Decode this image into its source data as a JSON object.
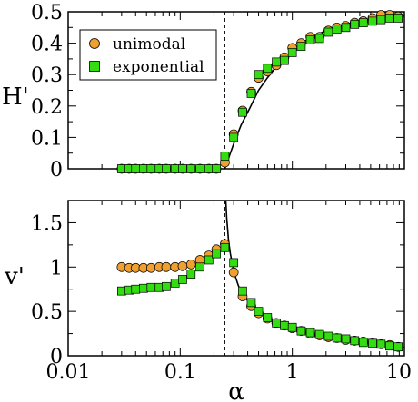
{
  "chart_data": [
    {
      "type": "scatter",
      "ylabel": "H'",
      "xlabel": "",
      "xscale": "log",
      "xlim": [
        0.01,
        10
      ],
      "ylim": [
        0,
        0.5
      ],
      "yticks": [
        0,
        0.1,
        0.2,
        0.3,
        0.4,
        0.5
      ],
      "ytick_labels": [
        "0",
        "0.1",
        "0.2",
        "0.3",
        "0.4",
        "0.5"
      ],
      "xtick_labels": [],
      "legend": "top-left",
      "vline_x": 0.25,
      "series": [
        {
          "name": "unimodal",
          "marker": "circle",
          "color": "#f0a030",
          "x": [
            0.03,
            0.035,
            0.04,
            0.047,
            0.055,
            0.065,
            0.075,
            0.09,
            0.105,
            0.125,
            0.15,
            0.18,
            0.21,
            0.25,
            0.3,
            0.36,
            0.43,
            0.5,
            0.6,
            0.72,
            0.85,
            1.0,
            1.2,
            1.45,
            1.75,
            2.1,
            2.5,
            3.0,
            3.6,
            4.3,
            5.2,
            6.2,
            7.4,
            8.8
          ],
          "y": [
            0,
            0,
            0,
            0,
            0,
            0,
            0,
            0,
            0,
            0,
            0,
            0,
            0,
            0.02,
            0.11,
            0.185,
            0.245,
            0.29,
            0.31,
            0.33,
            0.355,
            0.385,
            0.4,
            0.42,
            0.42,
            0.44,
            0.45,
            0.455,
            0.465,
            0.47,
            0.48,
            0.49,
            0.49,
            0.485
          ]
        },
        {
          "name": "exponential",
          "marker": "square",
          "color": "#33dd11",
          "x": [
            0.03,
            0.035,
            0.04,
            0.047,
            0.055,
            0.065,
            0.075,
            0.09,
            0.105,
            0.125,
            0.15,
            0.18,
            0.21,
            0.25,
            0.3,
            0.36,
            0.43,
            0.5,
            0.6,
            0.72,
            0.85,
            1.0,
            1.2,
            1.45,
            1.75,
            2.1,
            2.5,
            3.0,
            3.6,
            4.3,
            5.2,
            6.2,
            7.4,
            8.8
          ],
          "y": [
            0,
            0,
            0,
            0,
            0,
            0,
            0,
            0,
            0,
            0,
            0,
            0,
            0,
            0.04,
            0.1,
            0.18,
            0.24,
            0.3,
            0.32,
            0.34,
            0.345,
            0.37,
            0.39,
            0.41,
            0.415,
            0.435,
            0.445,
            0.45,
            0.46,
            0.465,
            0.47,
            0.475,
            0.48,
            0.48
          ]
        }
      ],
      "curve": {
        "x": [
          0.25,
          0.3,
          0.35,
          0.4,
          0.5,
          0.6,
          0.7,
          0.8,
          1.0,
          1.2,
          1.5,
          2.0,
          2.5,
          3.0,
          4.0,
          5.0,
          6.0,
          8.0,
          10.0
        ],
        "y": [
          0,
          0.08,
          0.14,
          0.18,
          0.25,
          0.29,
          0.32,
          0.345,
          0.375,
          0.4,
          0.42,
          0.44,
          0.452,
          0.46,
          0.47,
          0.476,
          0.48,
          0.484,
          0.486
        ]
      }
    },
    {
      "type": "scatter",
      "ylabel": "v'",
      "xlabel": "α",
      "xscale": "log",
      "xlim": [
        0.01,
        10
      ],
      "ylim": [
        0,
        1.75
      ],
      "yticks": [
        0,
        0.5,
        1,
        1.5
      ],
      "ytick_labels": [
        "0",
        "0.5",
        "1",
        "1.5"
      ],
      "xticks": [
        0.01,
        0.1,
        1,
        10
      ],
      "xtick_labels": [
        "0.01",
        "0.1",
        "1",
        "10"
      ],
      "vline_x": 0.25,
      "series": [
        {
          "name": "unimodal",
          "marker": "circle",
          "color": "#f0a030",
          "x": [
            0.03,
            0.035,
            0.04,
            0.047,
            0.055,
            0.065,
            0.075,
            0.09,
            0.105,
            0.125,
            0.15,
            0.18,
            0.21,
            0.25,
            0.3,
            0.36,
            0.43,
            0.5,
            0.6,
            0.72,
            0.85,
            1.0,
            1.2,
            1.45,
            1.75,
            2.1,
            2.5,
            3.0,
            3.6,
            4.3,
            5.2,
            6.2,
            7.4,
            8.8
          ],
          "y": [
            1.0,
            0.99,
            0.99,
            0.99,
            0.99,
            1.0,
            1.0,
            1.0,
            1.01,
            1.03,
            1.08,
            1.13,
            1.2,
            1.26,
            0.94,
            0.67,
            0.56,
            0.48,
            0.42,
            0.37,
            0.34,
            0.31,
            0.28,
            0.25,
            0.23,
            0.21,
            0.2,
            0.18,
            0.17,
            0.16,
            0.14,
            0.13,
            0.12,
            0.1
          ]
        },
        {
          "name": "exponential",
          "marker": "square",
          "color": "#33dd11",
          "x": [
            0.03,
            0.035,
            0.04,
            0.047,
            0.055,
            0.065,
            0.075,
            0.09,
            0.105,
            0.125,
            0.15,
            0.18,
            0.21,
            0.25,
            0.3,
            0.36,
            0.43,
            0.5,
            0.6,
            0.72,
            0.85,
            1.0,
            1.2,
            1.45,
            1.75,
            2.1,
            2.5,
            3.0,
            3.6,
            4.3,
            5.2,
            6.2,
            7.4,
            8.8
          ],
          "y": [
            0.73,
            0.74,
            0.75,
            0.76,
            0.77,
            0.77,
            0.78,
            0.82,
            0.86,
            0.92,
            1.0,
            1.08,
            1.15,
            1.22,
            1.05,
            0.73,
            0.6,
            0.5,
            0.43,
            0.37,
            0.34,
            0.32,
            0.28,
            0.26,
            0.24,
            0.22,
            0.2,
            0.19,
            0.17,
            0.15,
            0.14,
            0.13,
            0.11,
            0.1
          ]
        }
      ],
      "curve": {
        "x": [
          0.255,
          0.26,
          0.27,
          0.28,
          0.3,
          0.33,
          0.36,
          0.4,
          0.45,
          0.5,
          0.6,
          0.7,
          0.8,
          1.0,
          1.3,
          1.7,
          2.2,
          3.0,
          4.0,
          5.5,
          7.5,
          10.0
        ],
        "y": [
          1.75,
          1.55,
          1.3,
          1.15,
          0.95,
          0.79,
          0.7,
          0.62,
          0.55,
          0.49,
          0.42,
          0.37,
          0.34,
          0.3,
          0.26,
          0.23,
          0.2,
          0.17,
          0.15,
          0.13,
          0.11,
          0.095
        ]
      }
    }
  ]
}
